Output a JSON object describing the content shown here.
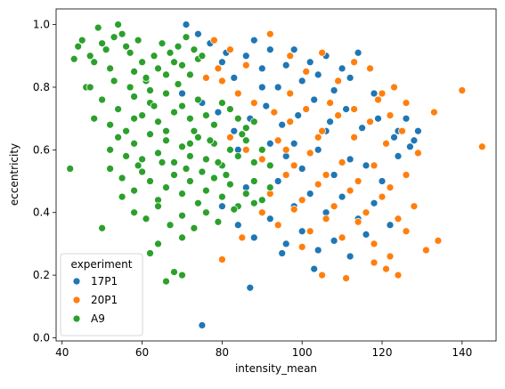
{
  "chart_data": {
    "type": "scatter",
    "title": "",
    "xlabel": "intensity_mean",
    "ylabel": "eccentricity",
    "xlim": [
      38.5,
      148.5
    ],
    "ylim": [
      -0.01,
      1.05
    ],
    "xticks": [
      40,
      60,
      80,
      100,
      120,
      140
    ],
    "yticks": [
      0.0,
      0.2,
      0.4,
      0.6,
      0.8,
      1.0
    ],
    "grid": false,
    "legend": {
      "title": "experiment",
      "position": "lower-left"
    },
    "series": [
      {
        "name": "17P1",
        "color": "#1f77b4",
        "points": [
          [
            70,
            0.78
          ],
          [
            74,
            0.97
          ],
          [
            77,
            0.94
          ],
          [
            80,
            0.88
          ],
          [
            83,
            0.83
          ],
          [
            86,
            0.9
          ],
          [
            88,
            0.95
          ],
          [
            90,
            0.86
          ],
          [
            92,
            0.92
          ],
          [
            94,
            0.8
          ],
          [
            96,
            0.87
          ],
          [
            98,
            0.92
          ],
          [
            100,
            0.82
          ],
          [
            102,
            0.88
          ],
          [
            104,
            0.84
          ],
          [
            106,
            0.9
          ],
          [
            108,
            0.79
          ],
          [
            110,
            0.86
          ],
          [
            112,
            0.83
          ],
          [
            75,
            0.75
          ],
          [
            79,
            0.72
          ],
          [
            83,
            0.66
          ],
          [
            87,
            0.7
          ],
          [
            91,
            0.74
          ],
          [
            95,
            0.68
          ],
          [
            99,
            0.71
          ],
          [
            103,
            0.76
          ],
          [
            107,
            0.69
          ],
          [
            111,
            0.73
          ],
          [
            115,
            0.67
          ],
          [
            119,
            0.7
          ],
          [
            123,
            0.64
          ],
          [
            127,
            0.61
          ],
          [
            129,
            0.66
          ],
          [
            84,
            0.6
          ],
          [
            88,
            0.56
          ],
          [
            92,
            0.62
          ],
          [
            96,
            0.58
          ],
          [
            100,
            0.54
          ],
          [
            104,
            0.6
          ],
          [
            108,
            0.52
          ],
          [
            112,
            0.57
          ],
          [
            116,
            0.55
          ],
          [
            120,
            0.5
          ],
          [
            124,
            0.58
          ],
          [
            128,
            0.63
          ],
          [
            86,
            0.48
          ],
          [
            90,
            0.44
          ],
          [
            94,
            0.5
          ],
          [
            98,
            0.42
          ],
          [
            102,
            0.46
          ],
          [
            106,
            0.4
          ],
          [
            110,
            0.45
          ],
          [
            114,
            0.38
          ],
          [
            118,
            0.43
          ],
          [
            122,
            0.36
          ],
          [
            80,
            0.42
          ],
          [
            84,
            0.36
          ],
          [
            88,
            0.32
          ],
          [
            92,
            0.38
          ],
          [
            96,
            0.3
          ],
          [
            100,
            0.34
          ],
          [
            104,
            0.28
          ],
          [
            108,
            0.31
          ],
          [
            112,
            0.26
          ],
          [
            116,
            0.33
          ],
          [
            87,
            0.16
          ],
          [
            75,
            0.04
          ],
          [
            95,
            0.27
          ],
          [
            103,
            0.22
          ],
          [
            98,
            0.62
          ],
          [
            106,
            0.66
          ],
          [
            90,
            0.8
          ],
          [
            81,
            0.91
          ],
          [
            71,
            1.0
          ],
          [
            114,
            0.91
          ],
          [
            118,
            0.78
          ],
          [
            124,
            0.66
          ],
          [
            126,
            0.7
          ]
        ]
      },
      {
        "name": "20P1",
        "color": "#ff7f0e",
        "points": [
          [
            78,
            0.95
          ],
          [
            82,
            0.92
          ],
          [
            86,
            0.87
          ],
          [
            92,
            0.97
          ],
          [
            97,
            0.9
          ],
          [
            101,
            0.85
          ],
          [
            105,
            0.91
          ],
          [
            109,
            0.82
          ],
          [
            113,
            0.88
          ],
          [
            117,
            0.86
          ],
          [
            120,
            0.78
          ],
          [
            123,
            0.8
          ],
          [
            126,
            0.75
          ],
          [
            133,
            0.72
          ],
          [
            140,
            0.79
          ],
          [
            145,
            0.61
          ],
          [
            80,
            0.82
          ],
          [
            84,
            0.78
          ],
          [
            88,
            0.75
          ],
          [
            93,
            0.72
          ],
          [
            97,
            0.69
          ],
          [
            101,
            0.73
          ],
          [
            105,
            0.66
          ],
          [
            109,
            0.71
          ],
          [
            113,
            0.64
          ],
          [
            117,
            0.69
          ],
          [
            121,
            0.62
          ],
          [
            125,
            0.66
          ],
          [
            129,
            0.59
          ],
          [
            82,
            0.64
          ],
          [
            86,
            0.6
          ],
          [
            90,
            0.57
          ],
          [
            94,
            0.63
          ],
          [
            98,
            0.55
          ],
          [
            102,
            0.59
          ],
          [
            106,
            0.52
          ],
          [
            110,
            0.56
          ],
          [
            114,
            0.5
          ],
          [
            118,
            0.55
          ],
          [
            122,
            0.48
          ],
          [
            126,
            0.52
          ],
          [
            88,
            0.5
          ],
          [
            92,
            0.46
          ],
          [
            96,
            0.52
          ],
          [
            100,
            0.44
          ],
          [
            104,
            0.49
          ],
          [
            108,
            0.42
          ],
          [
            112,
            0.47
          ],
          [
            116,
            0.4
          ],
          [
            120,
            0.45
          ],
          [
            124,
            0.38
          ],
          [
            128,
            0.42
          ],
          [
            90,
            0.4
          ],
          [
            94,
            0.36
          ],
          [
            98,
            0.41
          ],
          [
            102,
            0.34
          ],
          [
            106,
            0.38
          ],
          [
            110,
            0.32
          ],
          [
            114,
            0.37
          ],
          [
            118,
            0.3
          ],
          [
            122,
            0.26
          ],
          [
            126,
            0.34
          ],
          [
            131,
            0.28
          ],
          [
            134,
            0.31
          ],
          [
            80,
            0.25
          ],
          [
            85,
            0.32
          ],
          [
            100,
            0.29
          ],
          [
            105,
            0.2
          ],
          [
            111,
            0.19
          ],
          [
            118,
            0.24
          ],
          [
            121,
            0.22
          ],
          [
            124,
            0.2
          ],
          [
            76,
            0.83
          ],
          [
            79,
            0.86
          ],
          [
            97,
            0.78
          ],
          [
            107,
            0.75
          ],
          [
            113,
            0.73
          ],
          [
            119,
            0.76
          ],
          [
            122,
            0.71
          ],
          [
            96,
            0.6
          ],
          [
            104,
            0.64
          ]
        ]
      },
      {
        "name": "A9",
        "color": "#2ca02c",
        "points": [
          [
            42,
            0.54
          ],
          [
            43,
            0.89
          ],
          [
            44,
            0.93
          ],
          [
            45,
            0.95
          ],
          [
            46,
            0.8
          ],
          [
            47,
            0.9
          ],
          [
            48,
            0.88
          ],
          [
            49,
            0.99
          ],
          [
            50,
            0.94
          ],
          [
            51,
            0.92
          ],
          [
            52,
            0.86
          ],
          [
            53,
            0.96
          ],
          [
            54,
            1.0
          ],
          [
            55,
            0.97
          ],
          [
            56,
            0.93
          ],
          [
            57,
            0.91
          ],
          [
            58,
            0.85
          ],
          [
            59,
            0.95
          ],
          [
            60,
            0.88
          ],
          [
            61,
            0.82
          ],
          [
            62,
            0.79
          ],
          [
            63,
            0.9
          ],
          [
            64,
            0.86
          ],
          [
            65,
            0.94
          ],
          [
            66,
            0.84
          ],
          [
            67,
            0.91
          ],
          [
            68,
            0.88
          ],
          [
            69,
            0.93
          ],
          [
            70,
            0.87
          ],
          [
            71,
            0.96
          ],
          [
            72,
            0.84
          ],
          [
            73,
            0.92
          ],
          [
            74,
            0.89
          ],
          [
            75,
            0.9
          ],
          [
            48,
            0.7
          ],
          [
            50,
            0.76
          ],
          [
            52,
            0.68
          ],
          [
            54,
            0.73
          ],
          [
            56,
            0.66
          ],
          [
            58,
            0.77
          ],
          [
            60,
            0.71
          ],
          [
            62,
            0.75
          ],
          [
            64,
            0.69
          ],
          [
            66,
            0.78
          ],
          [
            68,
            0.72
          ],
          [
            70,
            0.74
          ],
          [
            72,
            0.7
          ],
          [
            74,
            0.76
          ],
          [
            76,
            0.71
          ],
          [
            78,
            0.68
          ],
          [
            80,
            0.75
          ],
          [
            82,
            0.73
          ],
          [
            84,
            0.7
          ],
          [
            86,
            0.67
          ],
          [
            88,
            0.69
          ],
          [
            52,
            0.6
          ],
          [
            54,
            0.64
          ],
          [
            56,
            0.58
          ],
          [
            58,
            0.62
          ],
          [
            60,
            0.57
          ],
          [
            62,
            0.65
          ],
          [
            64,
            0.59
          ],
          [
            66,
            0.63
          ],
          [
            68,
            0.56
          ],
          [
            70,
            0.61
          ],
          [
            72,
            0.58
          ],
          [
            74,
            0.64
          ],
          [
            76,
            0.57
          ],
          [
            78,
            0.62
          ],
          [
            80,
            0.55
          ],
          [
            82,
            0.6
          ],
          [
            84,
            0.58
          ],
          [
            86,
            0.63
          ],
          [
            88,
            0.56
          ],
          [
            90,
            0.6
          ],
          [
            92,
            0.55
          ],
          [
            52,
            0.54
          ],
          [
            55,
            0.51
          ],
          [
            58,
            0.47
          ],
          [
            60,
            0.53
          ],
          [
            62,
            0.5
          ],
          [
            64,
            0.44
          ],
          [
            66,
            0.48
          ],
          [
            68,
            0.52
          ],
          [
            70,
            0.46
          ],
          [
            72,
            0.5
          ],
          [
            74,
            0.43
          ],
          [
            76,
            0.47
          ],
          [
            78,
            0.51
          ],
          [
            80,
            0.45
          ],
          [
            82,
            0.49
          ],
          [
            84,
            0.42
          ],
          [
            86,
            0.46
          ],
          [
            88,
            0.5
          ],
          [
            90,
            0.44
          ],
          [
            92,
            0.48
          ],
          [
            55,
            0.45
          ],
          [
            58,
            0.4
          ],
          [
            61,
            0.38
          ],
          [
            64,
            0.42
          ],
          [
            67,
            0.36
          ],
          [
            70,
            0.39
          ],
          [
            73,
            0.35
          ],
          [
            76,
            0.4
          ],
          [
            79,
            0.37
          ],
          [
            83,
            0.41
          ],
          [
            88,
            0.43
          ],
          [
            50,
            0.35
          ],
          [
            62,
            0.27
          ],
          [
            64,
            0.3
          ],
          [
            66,
            0.18
          ],
          [
            68,
            0.21
          ],
          [
            70,
            0.2
          ],
          [
            70,
            0.32
          ],
          [
            53,
            0.82
          ],
          [
            57,
            0.8
          ],
          [
            61,
            0.83
          ],
          [
            69,
            0.81
          ],
          [
            47,
            0.8
          ],
          [
            63,
            0.74
          ],
          [
            73,
            0.66
          ],
          [
            77,
            0.63
          ],
          [
            85,
            0.65
          ],
          [
            59,
            0.55
          ],
          [
            65,
            0.56
          ],
          [
            71,
            0.54
          ],
          [
            75,
            0.53
          ],
          [
            79,
            0.56
          ],
          [
            81,
            0.52
          ],
          [
            58,
            0.7
          ],
          [
            66,
            0.66
          ],
          [
            72,
            0.62
          ]
        ]
      }
    ]
  }
}
